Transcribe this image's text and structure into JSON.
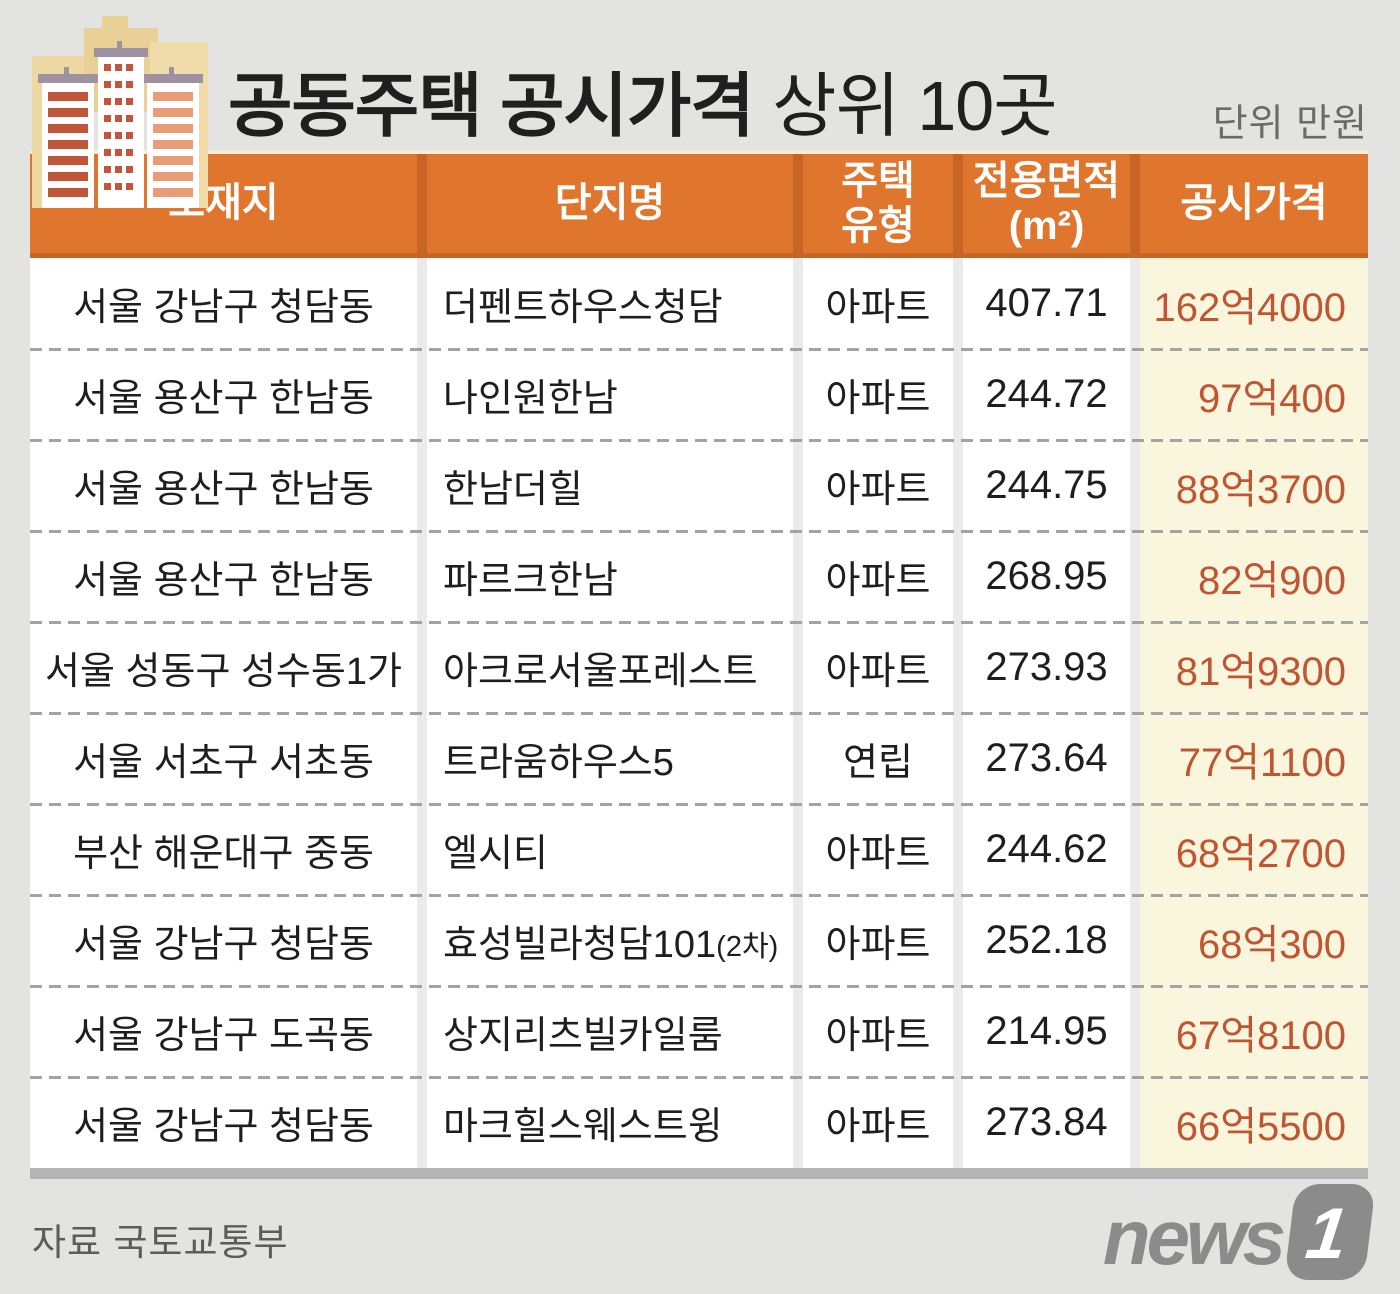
{
  "title": {
    "bold": "공동주택 공시가격",
    "regular": " 상위 10곳"
  },
  "unit_note": "단위 만원",
  "table": {
    "headers": {
      "location": "소재지",
      "complex": "단지명",
      "type_line1": "주택",
      "type_line2": "유형",
      "area_line1": "전용면적",
      "area_line2": "(m²)",
      "price": "공시가격"
    },
    "rows": [
      {
        "location": "서울 강남구 청담동",
        "complex": "더펜트하우스청담",
        "complex_note": "",
        "type": "아파트",
        "area": "407.71",
        "price": "162억4000"
      },
      {
        "location": "서울 용산구 한남동",
        "complex": "나인원한남",
        "complex_note": "",
        "type": "아파트",
        "area": "244.72",
        "price": "97억400"
      },
      {
        "location": "서울 용산구 한남동",
        "complex": "한남더힐",
        "complex_note": "",
        "type": "아파트",
        "area": "244.75",
        "price": "88억3700"
      },
      {
        "location": "서울 용산구 한남동",
        "complex": "파르크한남",
        "complex_note": "",
        "type": "아파트",
        "area": "268.95",
        "price": "82억900"
      },
      {
        "location": "서울 성동구 성수동1가",
        "complex": "아크로서울포레스트",
        "complex_note": "",
        "type": "아파트",
        "area": "273.93",
        "price": "81억9300"
      },
      {
        "location": "서울 서초구 서초동",
        "complex": "트라움하우스5",
        "complex_note": "",
        "type": "연립",
        "area": "273.64",
        "price": "77억1100"
      },
      {
        "location": "부산 해운대구 중동",
        "complex": "엘시티",
        "complex_note": "",
        "type": "아파트",
        "area": "244.62",
        "price": "68억2700"
      },
      {
        "location": "서울 강남구 청담동",
        "complex": "효성빌라청담101",
        "complex_note": "(2차)",
        "type": "아파트",
        "area": "252.18",
        "price": "68억300"
      },
      {
        "location": "서울 강남구 도곡동",
        "complex": "상지리츠빌카일룸",
        "complex_note": "",
        "type": "아파트",
        "area": "214.95",
        "price": "67억8100"
      },
      {
        "location": "서울 강남구 청담동",
        "complex": "마크힐스웨스트윙",
        "complex_note": "",
        "type": "아파트",
        "area": "273.84",
        "price": "66억5500"
      }
    ]
  },
  "footer": {
    "source": "자료 국토교통부",
    "logo_text": "news",
    "logo_number": "1"
  },
  "icons": {
    "building_icon": "apartment-buildings-illustration",
    "news1_logo": "news1-press-logo"
  },
  "colors": {
    "header_orange": "#e0752d",
    "header_gap_orange": "#c96524",
    "price_column_cream": "#faf6de",
    "price_text": "#bf5531",
    "page_background": "#e3e3e1",
    "bottom_bar_gray": "#b5b5b5"
  }
}
